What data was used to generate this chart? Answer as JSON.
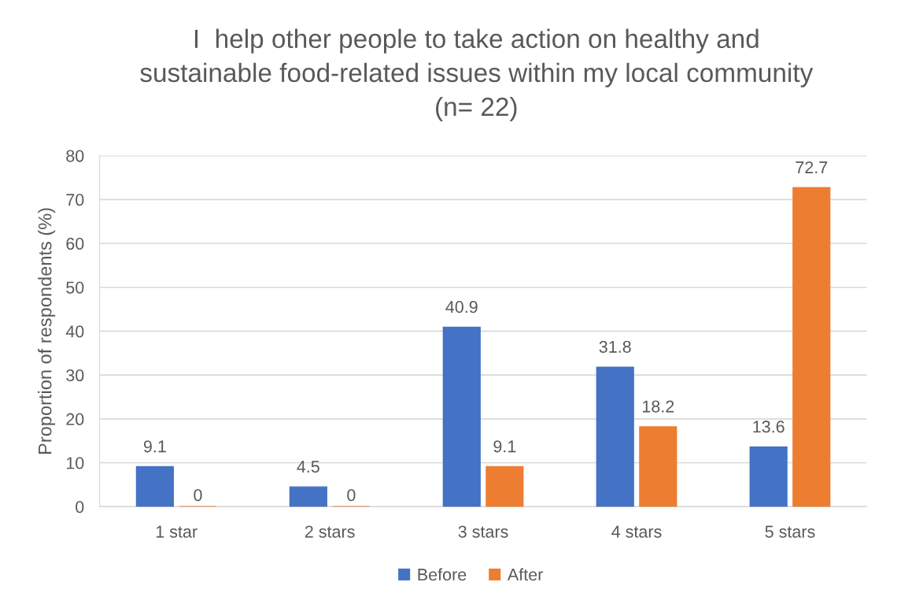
{
  "chart_data": {
    "type": "bar",
    "title": "I  help other people to take action on healthy and\nsustainable food-related issues within my local community\n(n= 22)",
    "ylabel": "Proportion of respondents (%)",
    "categories": [
      "1 star",
      "2 stars",
      "3 stars",
      "4 stars",
      "5 stars"
    ],
    "series": [
      {
        "name": "Before",
        "color": "#4472c4",
        "values": [
          9.1,
          4.5,
          40.9,
          31.8,
          13.6
        ]
      },
      {
        "name": "After",
        "color": "#ed7d31",
        "values": [
          0,
          0,
          9.1,
          18.2,
          72.7
        ]
      }
    ],
    "ylim": [
      0,
      80
    ],
    "yticks": [
      0,
      10,
      20,
      30,
      40,
      50,
      60,
      70,
      80
    ],
    "grid": "y",
    "legend": "bottom",
    "data_labels": true
  }
}
